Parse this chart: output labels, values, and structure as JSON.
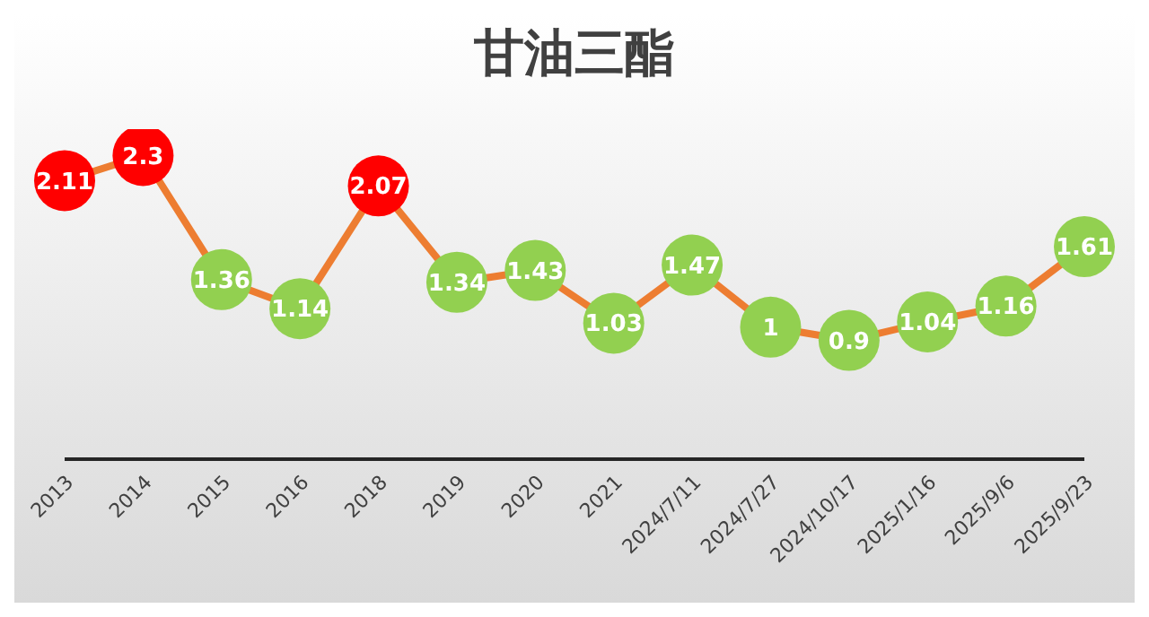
{
  "chart_data": {
    "type": "line",
    "title": "甘油三酯",
    "categories": [
      "2013",
      "2014",
      "2015",
      "2016",
      "2018",
      "2019",
      "2020",
      "2021",
      "2024/7/11",
      "2024/7/27",
      "2024/10/17",
      "2025/1/16",
      "2025/9/6",
      "2025/9/23"
    ],
    "series": [
      {
        "color": "#ed7d31",
        "values": [
          2.11,
          2.3,
          1.36,
          1.14,
          2.07,
          1.34,
          1.43,
          1.03,
          1.47,
          1,
          0.9,
          1.04,
          1.16,
          1.61
        ],
        "colors": [
          "#ff0000",
          "#ff0000",
          "#92d050",
          "#92d050",
          "#ff0000",
          "#92d050",
          "#92d050",
          "#92d050",
          "#92d050",
          "#92d050",
          "#92d050",
          "#92d050",
          "#92d050",
          "#92d050"
        ]
      }
    ],
    "tick_labels": "x",
    "marker": "circle",
    "line_style": "solid",
    "data_labels": true
  }
}
